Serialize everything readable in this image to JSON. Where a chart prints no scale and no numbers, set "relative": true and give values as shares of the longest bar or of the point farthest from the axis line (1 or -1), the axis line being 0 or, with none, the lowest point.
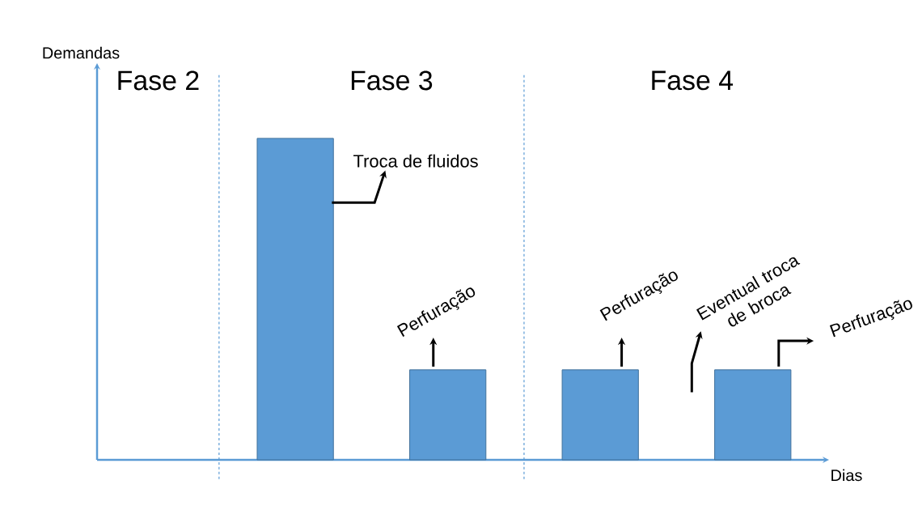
{
  "chart_data": {
    "type": "bar",
    "relative": true,
    "xlabel": "Dias",
    "ylabel": "Demandas",
    "categories": [
      null,
      null,
      null,
      null
    ],
    "values": [
      1,
      0.28,
      0.28,
      0.28
    ],
    "color": "#5b9bd5",
    "annotations": [
      "Fase 2",
      "Fase 3",
      "Fase 4",
      "Troca de fluidos",
      "Perfuração",
      "Perfuração",
      "Eventual troca de broca",
      "Perfuração"
    ]
  }
}
